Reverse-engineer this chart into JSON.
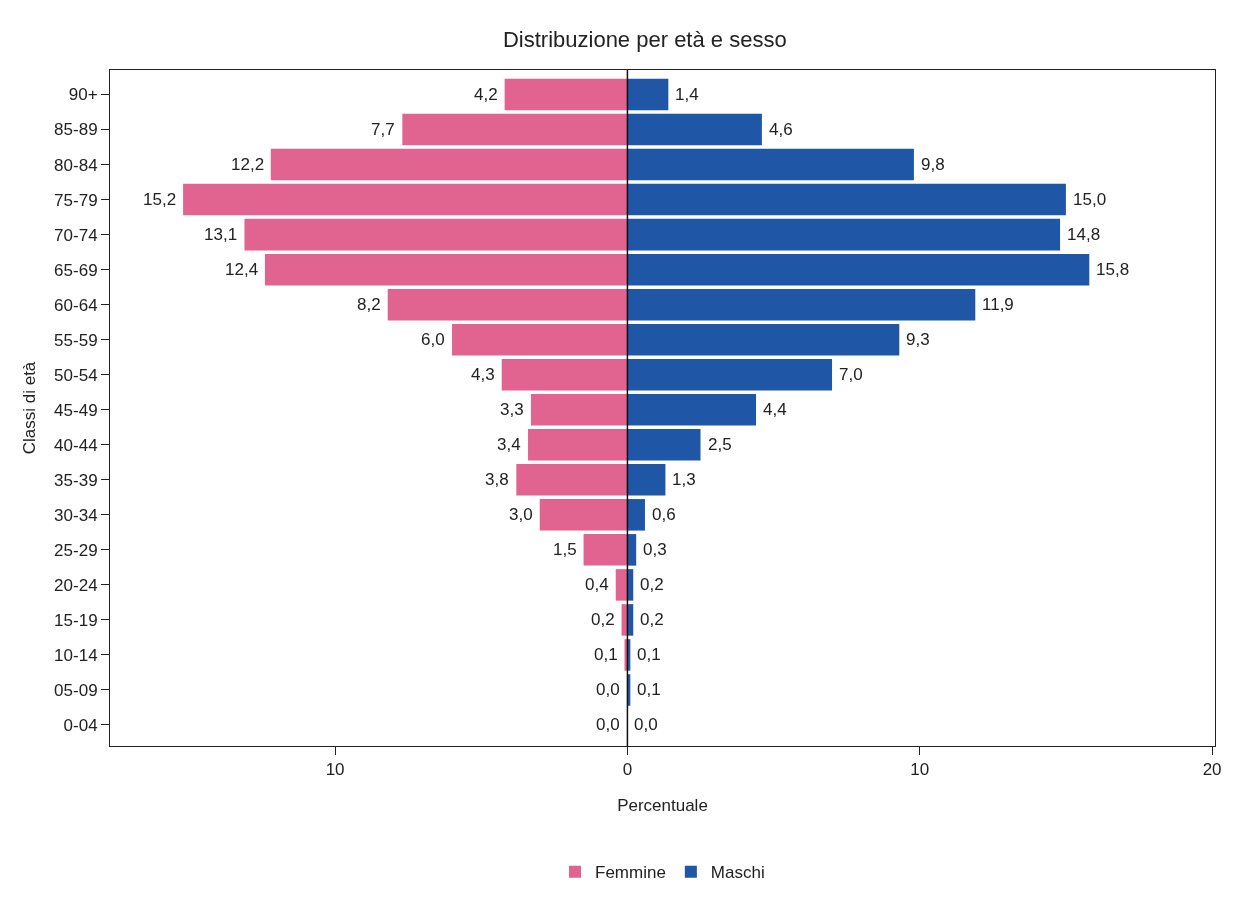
{
  "chart_data": {
    "type": "bar",
    "orientation": "horizontal",
    "title": "Distribuzione per età e sesso",
    "xlabel": "Percentuale",
    "ylabel": "Classi di età",
    "categories": [
      "90+",
      "85-89",
      "80-84",
      "75-79",
      "70-74",
      "65-69",
      "60-64",
      "55-59",
      "50-54",
      "45-49",
      "40-44",
      "35-39",
      "30-34",
      "25-29",
      "20-24",
      "15-19",
      "10-14",
      "05-09",
      "0-04"
    ],
    "series": [
      {
        "name": "Femmine",
        "color": "#e0648f",
        "base": [
          -4.2,
          -7.7,
          -12.2,
          -15.2,
          -13.1,
          -12.4,
          -8.2,
          -6.0,
          -4.3,
          -3.3,
          -3.4,
          -3.8,
          -3.0,
          -1.5,
          -0.4,
          -0.2,
          -0.1,
          null,
          null
        ],
        "values": [
          4.2,
          7.7,
          12.2,
          15.2,
          13.1,
          12.4,
          8.2,
          6.0,
          4.3,
          3.3,
          3.4,
          3.8,
          3.0,
          1.5,
          0.4,
          0.2,
          0.1,
          0.0,
          0.0
        ],
        "value_labels": [
          "4,2",
          "7,7",
          "12,2",
          "15,2",
          "13,1",
          "12,4",
          "8,2",
          "6,0",
          "4,3",
          "3,3",
          "3,4",
          "3,8",
          "3,0",
          "1,5",
          "0,4",
          "0,2",
          "0,1",
          "0,0",
          "0,0"
        ]
      },
      {
        "name": "Maschi",
        "color": "#1f56a5",
        "values": [
          1.4,
          4.6,
          9.8,
          15.0,
          14.8,
          15.8,
          11.9,
          9.3,
          7.0,
          4.4,
          2.5,
          1.3,
          0.6,
          0.3,
          0.2,
          0.2,
          0.1,
          0.1,
          0.0
        ],
        "value_labels": [
          "1,4",
          "4,6",
          "9,8",
          "15,0",
          "14,8",
          "15,8",
          "11,9",
          "9,3",
          "7,0",
          "4,4",
          "2,5",
          "1,3",
          "0,6",
          "0,3",
          "0,2",
          "0,2",
          "0,1",
          "0,1",
          "0,0"
        ]
      }
    ],
    "xlim": [
      -17.7,
      20.1
    ],
    "xticks": [
      {
        "value": -10,
        "label": "10"
      },
      0,
      10,
      20
    ],
    "ref_lines": [
      {
        "axis": "x",
        "value": 0,
        "color": "#111111"
      }
    ],
    "grid": false,
    "legend": "bottom"
  }
}
